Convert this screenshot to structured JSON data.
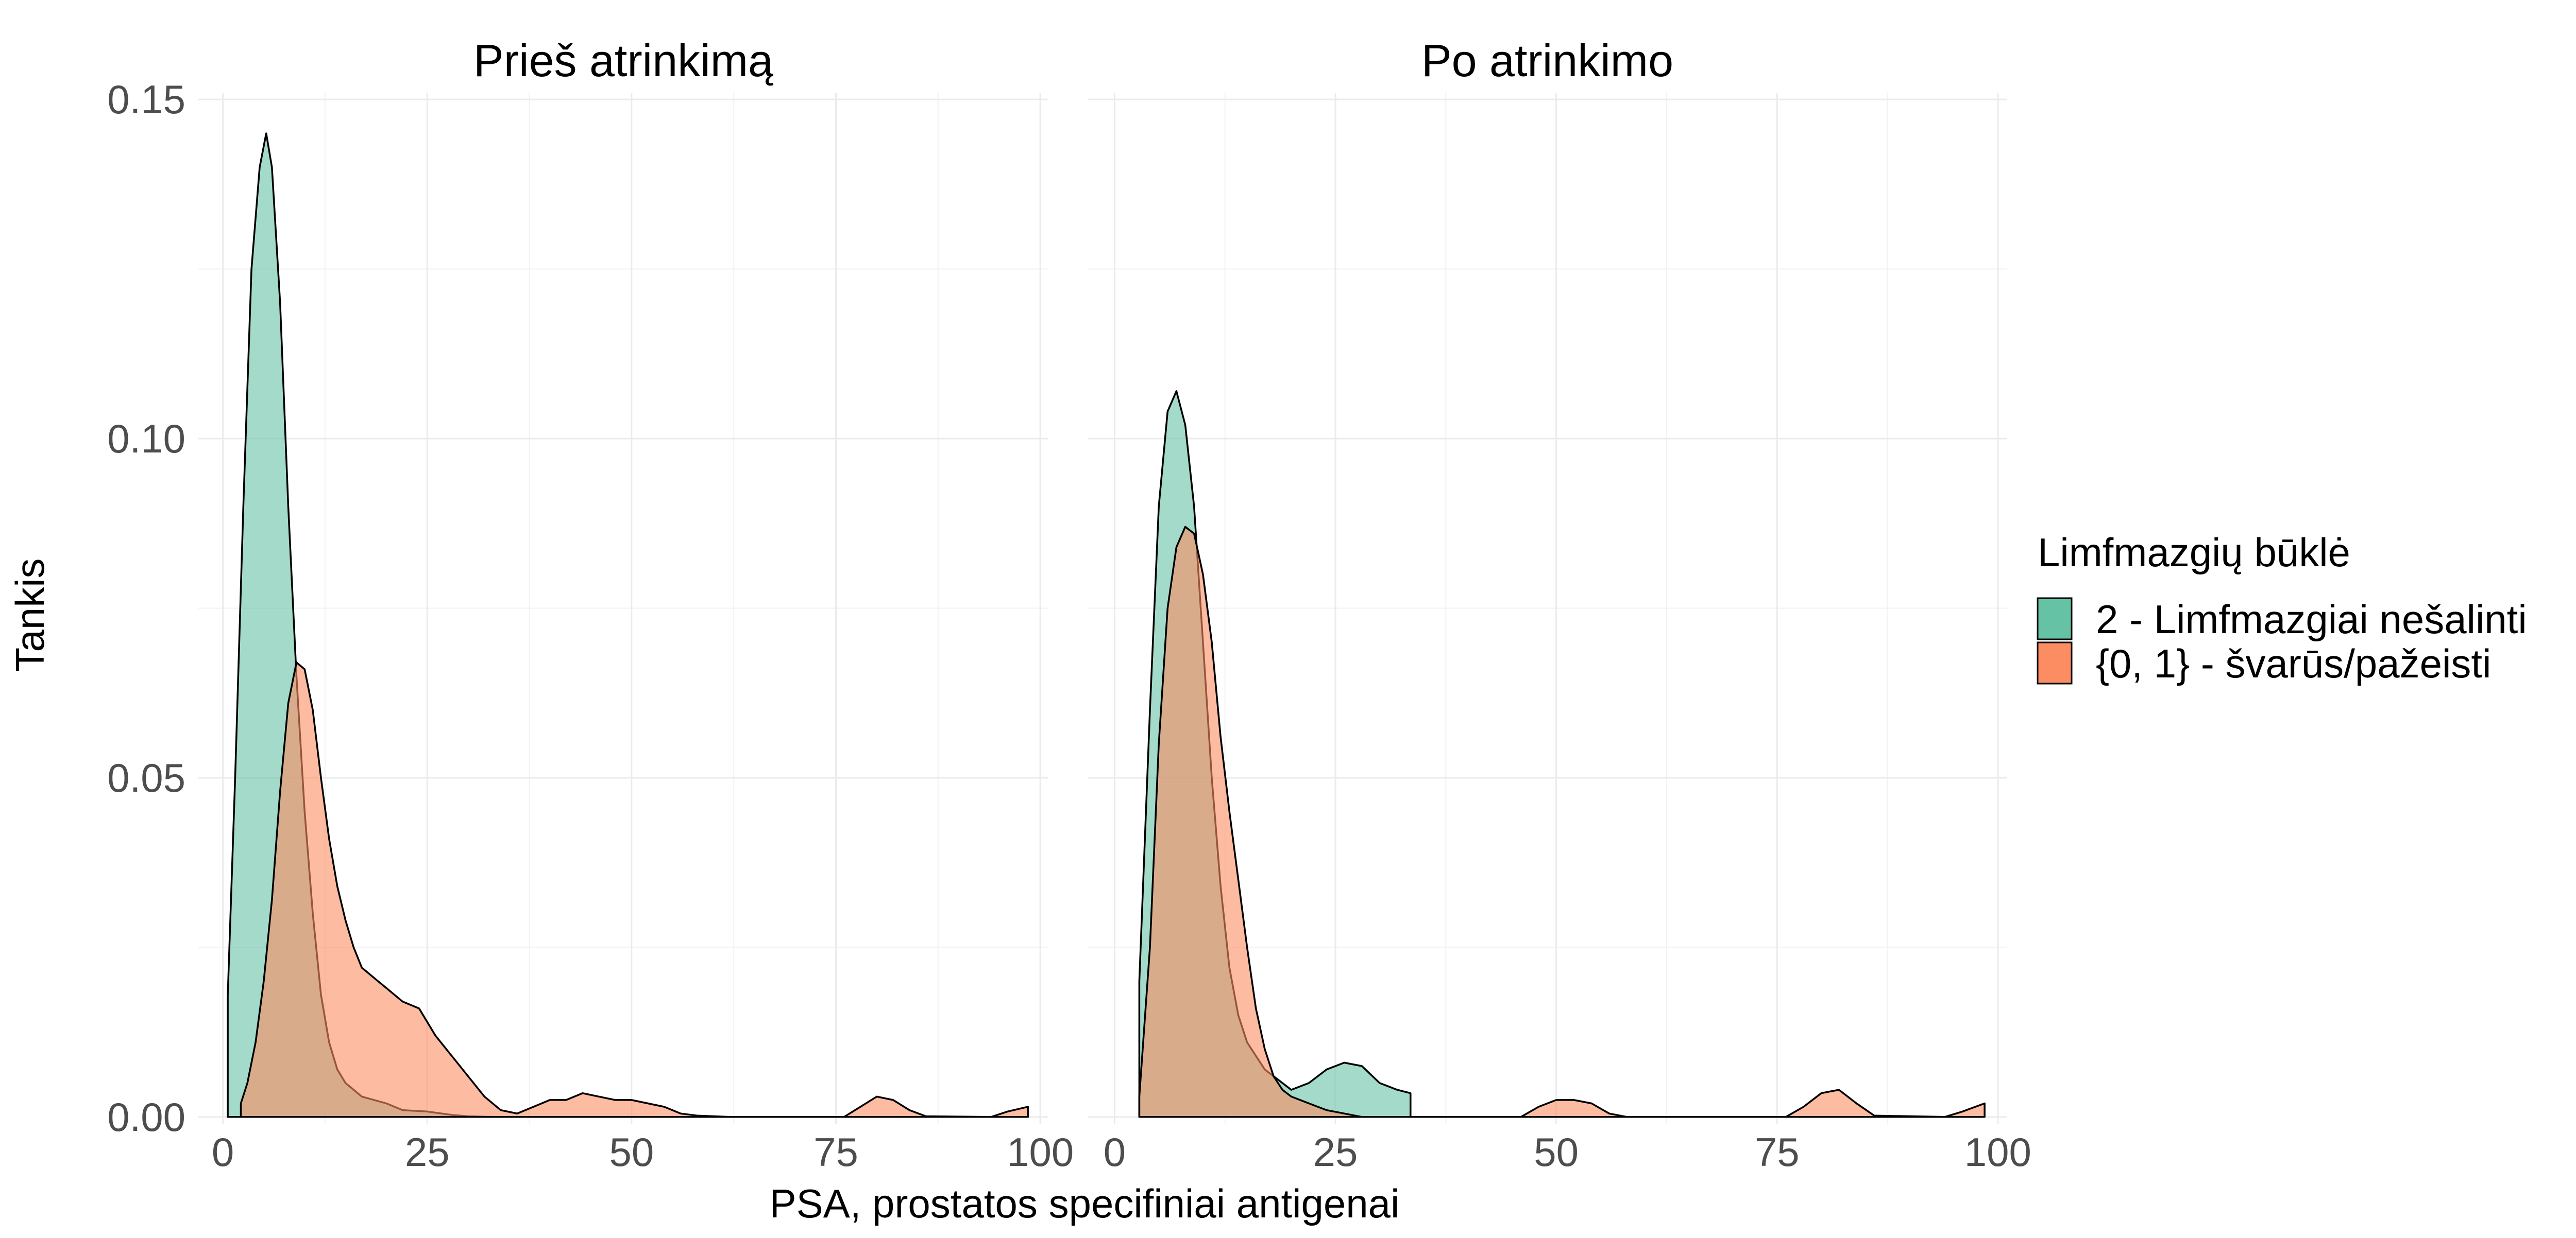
{
  "chart_data": {
    "type": "area",
    "xlabel": "PSA, prostatos specifiniai antigenai",
    "ylabel": "Tankis",
    "xlim": [
      -3,
      101
    ],
    "ylim": [
      -0.001,
      0.151
    ],
    "x_ticks": [
      0,
      25,
      50,
      75,
      100
    ],
    "x_tick_labels": [
      "0",
      "25",
      "50",
      "75",
      "100"
    ],
    "y_ticks": [
      0.0,
      0.05,
      0.1,
      0.15
    ],
    "y_tick_labels": [
      "0.00",
      "0.05",
      "0.10",
      "0.15"
    ],
    "grid": true,
    "legend": {
      "title": "Limfmazgių būklė",
      "position": "right",
      "entries": [
        {
          "label": "2 - Limfmazgiai nešalinti",
          "color": "#66C2A5"
        },
        {
          "label": "{0, 1} - švarūs/pažeisti",
          "color": "#FC8D62"
        }
      ]
    },
    "panels": [
      {
        "title": "Prieš atrinkimą",
        "series": [
          {
            "name": "2 - Limfmazgiai nešalinti",
            "color": "#66C2A5",
            "points": [
              [
                0.6,
                0
              ],
              [
                0.6,
                0.018
              ],
              [
                1.5,
                0.05
              ],
              [
                2.5,
                0.09
              ],
              [
                3.5,
                0.125
              ],
              [
                4.5,
                0.14
              ],
              [
                5.3,
                0.145
              ],
              [
                6,
                0.14
              ],
              [
                7,
                0.12
              ],
              [
                8,
                0.09
              ],
              [
                9,
                0.065
              ],
              [
                10,
                0.045
              ],
              [
                11,
                0.03
              ],
              [
                12,
                0.018
              ],
              [
                13,
                0.011
              ],
              [
                14,
                0.007
              ],
              [
                15,
                0.005
              ],
              [
                17,
                0.003
              ],
              [
                20,
                0.002
              ],
              [
                22,
                0.001
              ],
              [
                25,
                0.0008
              ],
              [
                28,
                0.0003
              ],
              [
                30,
                0.0001
              ],
              [
                33,
                0
              ]
            ]
          },
          {
            "name": "{0, 1} - švarūs/pažeisti",
            "color": "#FC8D62",
            "points": [
              [
                2.2,
                0
              ],
              [
                2.2,
                0.002
              ],
              [
                3,
                0.005
              ],
              [
                4,
                0.011
              ],
              [
                5,
                0.02
              ],
              [
                6,
                0.032
              ],
              [
                7,
                0.048
              ],
              [
                8,
                0.061
              ],
              [
                9,
                0.067
              ],
              [
                10,
                0.066
              ],
              [
                11,
                0.06
              ],
              [
                12,
                0.05
              ],
              [
                13,
                0.041
              ],
              [
                14,
                0.034
              ],
              [
                15,
                0.029
              ],
              [
                16,
                0.025
              ],
              [
                17,
                0.022
              ],
              [
                18,
                0.021
              ],
              [
                19,
                0.02
              ],
              [
                20,
                0.019
              ],
              [
                22,
                0.017
              ],
              [
                24,
                0.016
              ],
              [
                26,
                0.012
              ],
              [
                28,
                0.009
              ],
              [
                30,
                0.006
              ],
              [
                32,
                0.003
              ],
              [
                34,
                0.001
              ],
              [
                36,
                0.0005
              ],
              [
                38,
                0.0015
              ],
              [
                40,
                0.0025
              ],
              [
                42,
                0.0025
              ],
              [
                44,
                0.0035
              ],
              [
                46,
                0.003
              ],
              [
                48,
                0.0025
              ],
              [
                50,
                0.0025
              ],
              [
                52,
                0.002
              ],
              [
                54,
                0.0015
              ],
              [
                56,
                0.0005
              ],
              [
                58,
                0.0002
              ],
              [
                62,
                0
              ],
              [
                76,
                0
              ],
              [
                78,
                0.0015
              ],
              [
                80,
                0.003
              ],
              [
                82,
                0.0025
              ],
              [
                84,
                0.001
              ],
              [
                86,
                0.0001
              ],
              [
                94,
                0
              ],
              [
                96,
                0.0008
              ],
              [
                98.5,
                0.0015
              ],
              [
                98.5,
                0
              ]
            ]
          }
        ]
      },
      {
        "title": "Po atrinkimo",
        "series": [
          {
            "name": "2 - Limfmazgiai nešalinti",
            "color": "#66C2A5",
            "points": [
              [
                2.8,
                0
              ],
              [
                2.8,
                0.02
              ],
              [
                4,
                0.06
              ],
              [
                5,
                0.09
              ],
              [
                6,
                0.104
              ],
              [
                7,
                0.107
              ],
              [
                8,
                0.102
              ],
              [
                9,
                0.09
              ],
              [
                10,
                0.07
              ],
              [
                11,
                0.05
              ],
              [
                12,
                0.034
              ],
              [
                13,
                0.022
              ],
              [
                14,
                0.015
              ],
              [
                15,
                0.011
              ],
              [
                16,
                0.009
              ],
              [
                17,
                0.007
              ],
              [
                18,
                0.006
              ],
              [
                19,
                0.005
              ],
              [
                20,
                0.004
              ],
              [
                22,
                0.005
              ],
              [
                24,
                0.007
              ],
              [
                26,
                0.008
              ],
              [
                28,
                0.0075
              ],
              [
                30,
                0.005
              ],
              [
                32,
                0.004
              ],
              [
                33.5,
                0.0035
              ],
              [
                33.5,
                0
              ]
            ]
          },
          {
            "name": "{0, 1} - švarūs/pažeisti",
            "color": "#FC8D62",
            "points": [
              [
                2.8,
                0
              ],
              [
                2.8,
                0.003
              ],
              [
                4,
                0.025
              ],
              [
                5,
                0.055
              ],
              [
                6,
                0.075
              ],
              [
                7,
                0.084
              ],
              [
                8,
                0.087
              ],
              [
                9,
                0.086
              ],
              [
                10,
                0.08
              ],
              [
                11,
                0.07
              ],
              [
                12,
                0.056
              ],
              [
                13,
                0.045
              ],
              [
                14,
                0.035
              ],
              [
                15,
                0.025
              ],
              [
                16,
                0.016
              ],
              [
                17,
                0.01
              ],
              [
                18,
                0.006
              ],
              [
                19,
                0.004
              ],
              [
                20,
                0.003
              ],
              [
                22,
                0.002
              ],
              [
                24,
                0.001
              ],
              [
                26,
                0.0005
              ],
              [
                28,
                0
              ],
              [
                46,
                0
              ],
              [
                48,
                0.0015
              ],
              [
                50,
                0.0025
              ],
              [
                52,
                0.0025
              ],
              [
                54,
                0.002
              ],
              [
                56,
                0.0005
              ],
              [
                58,
                0
              ],
              [
                76,
                0
              ],
              [
                78,
                0.0015
              ],
              [
                80,
                0.0035
              ],
              [
                82,
                0.004
              ],
              [
                84,
                0.002
              ],
              [
                86,
                0.0002
              ],
              [
                94,
                0
              ],
              [
                96,
                0.0008
              ],
              [
                98.5,
                0.002
              ],
              [
                98.5,
                0
              ]
            ]
          }
        ]
      }
    ]
  }
}
